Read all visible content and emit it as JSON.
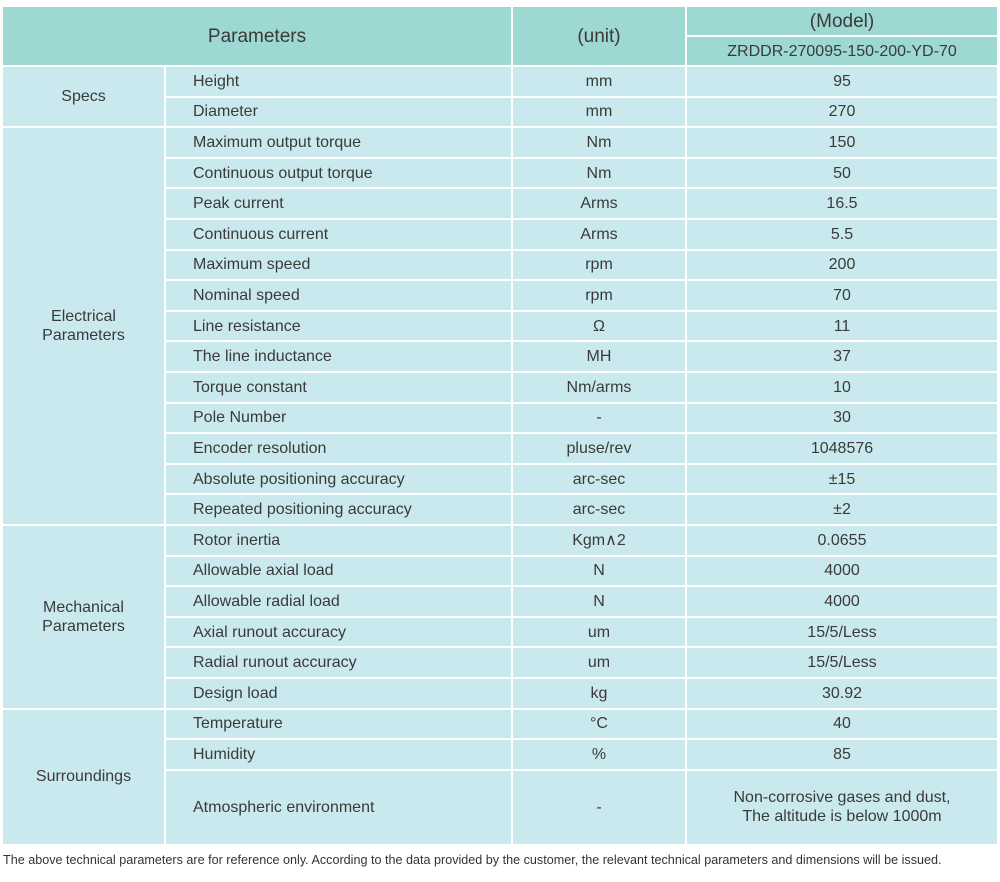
{
  "header": {
    "parameters": "Parameters",
    "unit": "(unit)",
    "model": "(Model)",
    "model_number": "ZRDDR-270095-150-200-YD-70"
  },
  "groups": [
    {
      "label": [
        "Specs"
      ],
      "rows": [
        {
          "parameter": "Height",
          "unit": "mm",
          "value": [
            "95"
          ]
        },
        {
          "parameter": "Diameter",
          "unit": "mm",
          "value": [
            "270"
          ]
        }
      ]
    },
    {
      "label": [
        "Electrical",
        "Parameters"
      ],
      "rows": [
        {
          "parameter": "Maximum output torque",
          "unit": "Nm",
          "value": [
            "150"
          ]
        },
        {
          "parameter": "Continuous output torque",
          "unit": "Nm",
          "value": [
            "50"
          ]
        },
        {
          "parameter": "Peak current",
          "unit": "Arms",
          "value": [
            "16.5"
          ]
        },
        {
          "parameter": "Continuous current",
          "unit": "Arms",
          "value": [
            "5.5"
          ]
        },
        {
          "parameter": "Maximum speed",
          "unit": "rpm",
          "value": [
            "200"
          ]
        },
        {
          "parameter": "Nominal speed",
          "unit": "rpm",
          "value": [
            "70"
          ]
        },
        {
          "parameter": "Line resistance",
          "unit": "Ω",
          "value": [
            "11"
          ]
        },
        {
          "parameter": "The line inductance",
          "unit": "MH",
          "value": [
            "37"
          ]
        },
        {
          "parameter": "Torque constant",
          "unit": "Nm/arms",
          "value": [
            "10"
          ]
        },
        {
          "parameter": "Pole Number",
          "unit": "-",
          "value": [
            "30"
          ]
        },
        {
          "parameter": "Encoder resolution",
          "unit": "pluse/rev",
          "value": [
            "1048576"
          ]
        },
        {
          "parameter": "Absolute positioning accuracy",
          "unit": "arc-sec",
          "value": [
            "±15"
          ]
        },
        {
          "parameter": "Repeated positioning accuracy",
          "unit": "arc-sec",
          "value": [
            "±2"
          ]
        }
      ]
    },
    {
      "label": [
        "Mechanical",
        "Parameters"
      ],
      "rows": [
        {
          "parameter": "Rotor inertia",
          "unit": "Kgm∧2",
          "value": [
            "0.0655"
          ]
        },
        {
          "parameter": "Allowable axial load",
          "unit": "N",
          "value": [
            "4000"
          ]
        },
        {
          "parameter": "Allowable radial load",
          "unit": "N",
          "value": [
            "4000"
          ]
        },
        {
          "parameter": "Axial runout accuracy",
          "unit": "um",
          "value": [
            "15/5/Less"
          ]
        },
        {
          "parameter": "Radial runout accuracy",
          "unit": "um",
          "value": [
            "15/5/Less"
          ]
        },
        {
          "parameter": "Design load",
          "unit": "kg",
          "value": [
            "30.92"
          ]
        }
      ]
    },
    {
      "label": [
        "Surroundings"
      ],
      "rows": [
        {
          "parameter": "Temperature",
          "unit": "°C",
          "value": [
            "40"
          ]
        },
        {
          "parameter": "Humidity",
          "unit": "%",
          "value": [
            "85"
          ]
        },
        {
          "parameter": "Atmospheric environment",
          "unit": "-",
          "value": [
            "Non-corrosive gases and dust,",
            "The altitude is below 1000m"
          ]
        }
      ]
    }
  ],
  "footnote": "The above technical parameters are for reference only. According to the data provided by the customer, the relevant technical parameters and dimensions will be issued."
}
